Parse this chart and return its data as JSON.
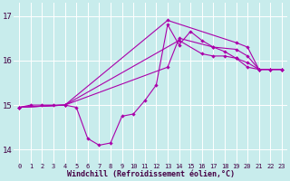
{
  "xlabel": "Windchill (Refroidissement éolien,°C)",
  "background_color": "#c8ecec",
  "grid_color": "#ffffff",
  "line_color": "#aa00aa",
  "xlim": [
    -0.5,
    23.5
  ],
  "ylim": [
    13.7,
    17.3
  ],
  "yticks": [
    14,
    15,
    16,
    17
  ],
  "xticks": [
    0,
    1,
    2,
    3,
    4,
    5,
    6,
    7,
    8,
    9,
    10,
    11,
    12,
    13,
    14,
    15,
    16,
    17,
    18,
    19,
    20,
    21,
    22,
    23
  ],
  "line1_x": [
    0,
    1,
    2,
    3,
    4,
    5,
    6,
    7,
    8,
    9,
    10,
    11,
    12,
    13,
    14,
    15,
    16,
    17,
    18,
    19,
    20,
    21,
    22,
    23
  ],
  "line1_y": [
    14.95,
    15.0,
    15.0,
    15.0,
    15.0,
    14.95,
    14.25,
    14.1,
    14.15,
    14.75,
    14.8,
    15.1,
    15.45,
    16.8,
    16.35,
    16.65,
    16.45,
    16.3,
    16.2,
    16.05,
    15.85,
    15.8,
    15.8,
    15.8
  ],
  "line2_x": [
    0,
    4,
    14,
    16,
    17,
    18,
    19,
    20,
    21,
    22,
    23
  ],
  "line2_y": [
    14.95,
    15.0,
    16.45,
    16.15,
    16.1,
    16.1,
    16.05,
    15.95,
    15.8,
    15.8,
    15.8
  ],
  "line3_x": [
    0,
    4,
    13,
    14,
    17,
    19,
    20,
    21,
    22,
    23
  ],
  "line3_y": [
    14.95,
    15.0,
    15.85,
    16.5,
    16.3,
    16.25,
    16.1,
    15.8,
    15.8,
    15.8
  ],
  "line4_x": [
    0,
    4,
    13,
    19,
    20,
    21,
    22,
    23
  ],
  "line4_y": [
    14.95,
    15.0,
    16.9,
    16.4,
    16.3,
    15.8,
    15.8,
    15.8
  ]
}
